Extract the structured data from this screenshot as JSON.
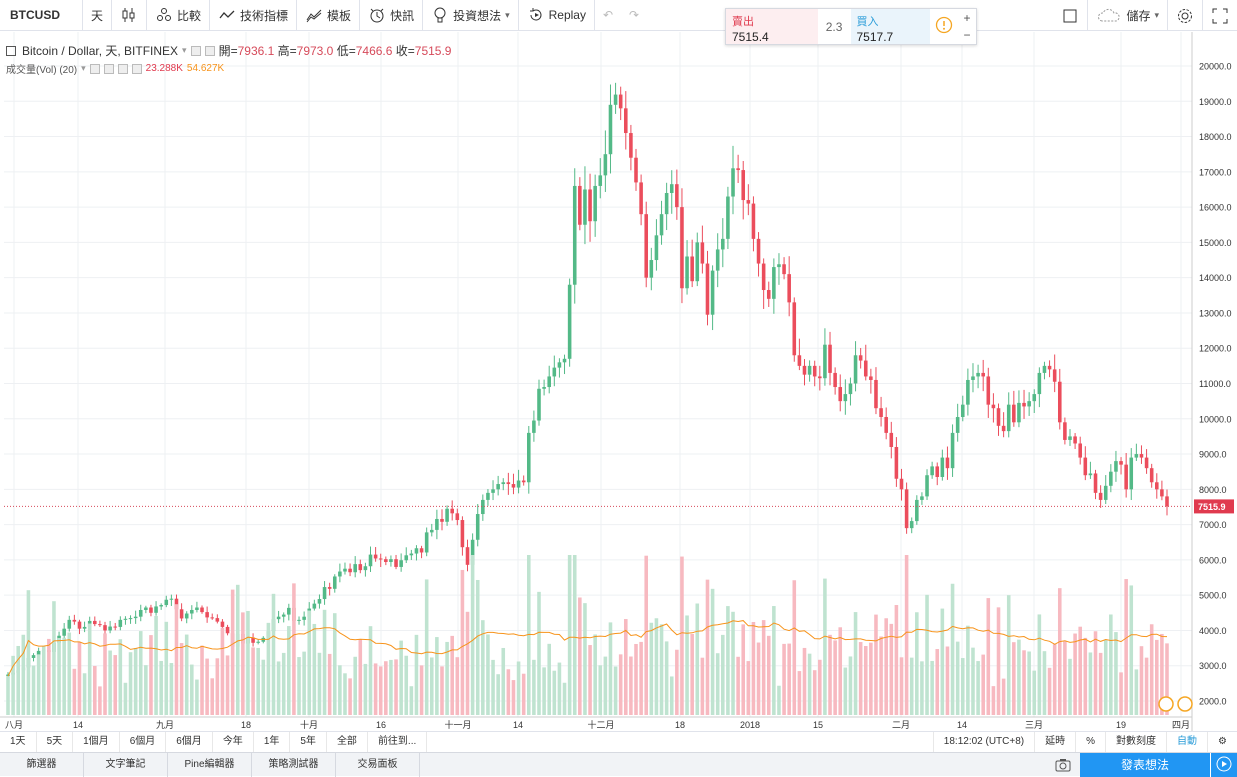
{
  "toolbar": {
    "symbol": "BTCUSD",
    "interval": "天",
    "compare": "比較",
    "indicators": "技術指標",
    "templates": "模板",
    "alerts": "快訊",
    "ideas": "投資想法",
    "replay": "Replay",
    "save": "儲存"
  },
  "trade": {
    "sell_label": "賣出",
    "sell_value": "7515.4",
    "spread": "2.3",
    "buy_label": "買入",
    "buy_value": "7517.7",
    "plus": "+",
    "minus": "−"
  },
  "legend": {
    "title": "Bitcoin / Dollar, 天, BITFINEX",
    "open_label": "開=",
    "open": "7936.1",
    "high_label": "高=",
    "high": "7973.0",
    "low_label": "低=",
    "low": "7466.6",
    "close_label": "收=",
    "close": "7515.9",
    "vol_title": "成交量(Vol) (20)",
    "vol_value": "23.288K",
    "vol_ma": "54.627K"
  },
  "price_axis": {
    "labels": [
      "20000.0",
      "19000.0",
      "18000.0",
      "17000.0",
      "16000.0",
      "15000.0",
      "14000.0",
      "13000.0",
      "12000.0",
      "11000.0",
      "10000.0",
      "9000.0",
      "8000.0",
      "7000.0",
      "6000.0",
      "5000.0",
      "4000.0",
      "3000.0",
      "2000.0"
    ],
    "last_price": "7515.9"
  },
  "time_axis": {
    "labels": [
      "八月",
      "14",
      "九月",
      "18",
      "十月",
      "16",
      "十一月",
      "14",
      "十二月",
      "18",
      "2018",
      "15",
      "二月",
      "14",
      "三月",
      "19",
      "四月"
    ]
  },
  "colors": {
    "up": "#53b987",
    "down": "#eb4d5c",
    "up_vol": "#bfe3d0",
    "down_vol": "#f7b9c0",
    "ma": "#f7931a",
    "grid": "#eef0f3"
  },
  "chart_data": {
    "type": "candlestick",
    "symbol": "BTCUSD",
    "interval": "1D",
    "start_date": "2017-08-01",
    "end_date": "2018-03-30",
    "ylim": [
      1500,
      20500
    ],
    "grid": true,
    "last_close": 7515.9,
    "close": [
      2750,
      2800,
      2870,
      2950,
      3220,
      3300,
      3420,
      3440,
      3390,
      3650,
      3850,
      4050,
      4300,
      4250,
      4050,
      4100,
      4270,
      4180,
      4150,
      4000,
      4110,
      4100,
      4300,
      4330,
      4350,
      4390,
      4580,
      4650,
      4500,
      4680,
      4720,
      4870,
      4900,
      4600,
      4340,
      4480,
      4580,
      4650,
      4520,
      4370,
      4350,
      4250,
      4100,
      3920,
      3540,
      3900,
      3630,
      3800,
      3650,
      3680,
      3790,
      3980,
      4320,
      4390,
      4450,
      4640,
      4270,
      4300,
      4390,
      4620,
      4760,
      4890,
      5230,
      5180,
      5530,
      5670,
      5750,
      5650,
      5880,
      5710,
      5820,
      6150,
      6040,
      6020,
      5940,
      6020,
      5800,
      5990,
      6130,
      6180,
      6330,
      6210,
      6780,
      6850,
      7160,
      7080,
      7450,
      7320,
      7130,
      6360,
      5860,
      6570,
      7300,
      7700,
      7900,
      8000,
      8150,
      8200,
      8150,
      8050,
      8250,
      8200,
      9600,
      9950,
      10850,
      10900,
      11200,
      11450,
      11600,
      11700,
      13800,
      16600,
      15500,
      16500,
      15600,
      16600,
      16900,
      17500,
      18900,
      19190,
      18800,
      18100,
      17400,
      16700,
      15800,
      14000,
      14500,
      15200,
      15800,
      16400,
      16650,
      16000,
      13700,
      14600,
      13900,
      15000,
      14400,
      12950,
      14200,
      14800,
      15100,
      16300,
      17100,
      17050,
      16200,
      16100,
      15100,
      14400,
      13650,
      13400,
      14300,
      14380,
      14100,
      13300,
      11800,
      11500,
      11250,
      11500,
      11200,
      11150,
      12100,
      11300,
      10900,
      10500,
      10700,
      11000,
      11800,
      11650,
      11200,
      11100,
      10300,
      10050,
      9600,
      9200,
      8300,
      8000,
      6900,
      7100,
      7700,
      7800,
      8400,
      8650,
      8350,
      8900,
      8600,
      9600,
      10050,
      10400,
      11100,
      11200,
      11300,
      11200,
      10400,
      10300,
      9800,
      9650,
      10400,
      9900,
      10450,
      10350,
      10500,
      10700,
      11300,
      11500,
      11400,
      11050,
      9900,
      9400,
      9500,
      9300,
      8900,
      8400,
      8450,
      7900,
      7700,
      8100,
      8500,
      8800,
      8700,
      8000,
      8900,
      9000,
      8900,
      8600,
      8200,
      8000,
      7800,
      7515.9
    ],
    "volume_ma": "20-period moving average of volume, orange line"
  }
}
